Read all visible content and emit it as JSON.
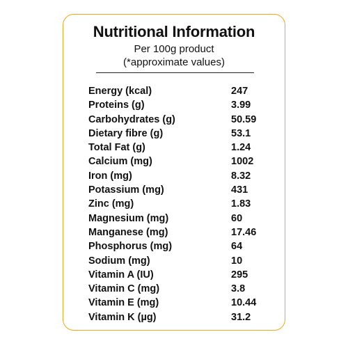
{
  "panel": {
    "title": "Nutritional Information",
    "subtitle_line1": "Per 100g product",
    "subtitle_line2": "(*approximate values)",
    "border_color": "#f2a51e"
  },
  "nutrients": [
    {
      "label": "Energy (kcal)",
      "value": "247"
    },
    {
      "label": "Proteins (g)",
      "value": "3.99"
    },
    {
      "label": "Carbohydrates (g)",
      "value": "50.59"
    },
    {
      "label": "Dietary fibre (g)",
      "value": "53.1"
    },
    {
      "label": "Total Fat (g)",
      "value": "1.24"
    },
    {
      "label": "Calcium (mg)",
      "value": "1002"
    },
    {
      "label": "Iron (mg)",
      "value": "8.32"
    },
    {
      "label": "Potassium (mg)",
      "value": "431"
    },
    {
      "label": "Zinc (mg)",
      "value": "1.83"
    },
    {
      "label": "Magnesium (mg)",
      "value": "60"
    },
    {
      "label": "Manganese (mg)",
      "value": "17.46"
    },
    {
      "label": "Phosphorus (mg)",
      "value": "64"
    },
    {
      "label": "Sodium (mg)",
      "value": "10"
    },
    {
      "label": "Vitamin A (IU)",
      "value": "295"
    },
    {
      "label": "Vitamin C (mg)",
      "value": "3.8"
    },
    {
      "label": "Vitamin E (mg)",
      "value": "10.44"
    },
    {
      "label": "Vitamin K (µg)",
      "value": "31.2"
    }
  ]
}
